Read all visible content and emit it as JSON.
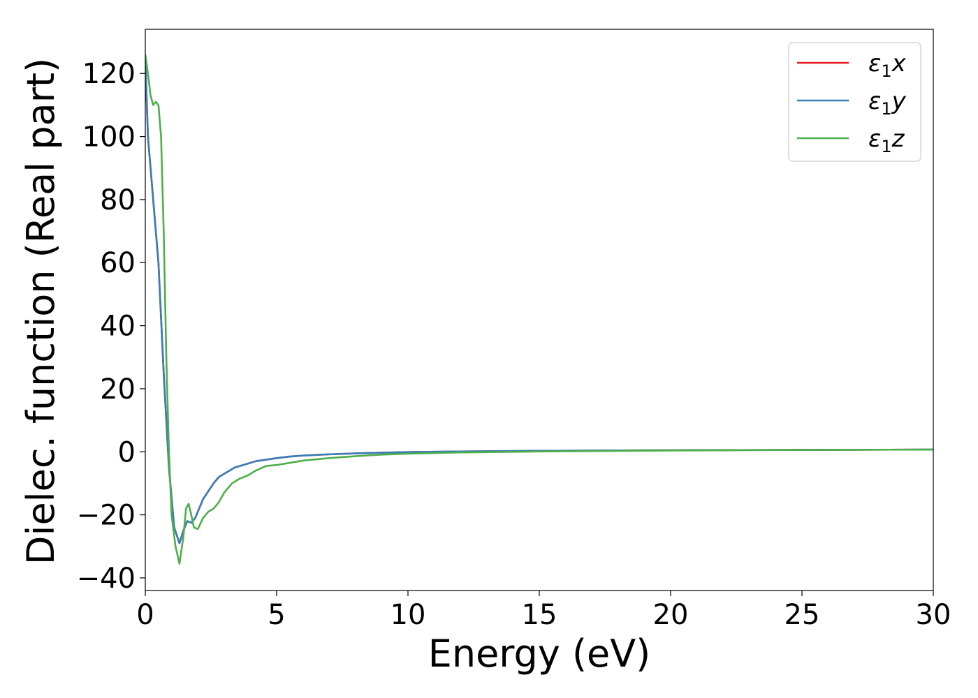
{
  "chart_data": {
    "type": "line",
    "xlabel": "Energy (eV)",
    "ylabel": "Dielec. function (Real part)",
    "xlim": [
      0,
      30
    ],
    "ylim": [
      -44,
      134
    ],
    "xticks": [
      0,
      5,
      10,
      15,
      20,
      25,
      30
    ],
    "yticks": [
      -40,
      -20,
      0,
      20,
      40,
      60,
      80,
      100,
      120
    ],
    "yticklabels": [
      "−40",
      "−20",
      "0",
      "20",
      "40",
      "60",
      "80",
      "100",
      "120"
    ],
    "grid": false,
    "legend_position": "top-right",
    "series": [
      {
        "name": "x",
        "legend_label": {
          "base": "ε",
          "sub": "1",
          "var": "x"
        },
        "color": "#e41a1c",
        "x": [
          0,
          0.1,
          0.3,
          0.5,
          0.7,
          0.9,
          1.1,
          1.3,
          1.45,
          1.6,
          1.75,
          1.9,
          2.05,
          2.2,
          2.4,
          2.6,
          2.8,
          3.0,
          3.4,
          3.8,
          4.2,
          4.6,
          5.0,
          5.5,
          6.0,
          7.0,
          8.0,
          9.0,
          10.0,
          12.0,
          15.0,
          20.0,
          25.0,
          30.0
        ],
        "y": [
          125,
          100,
          80,
          60,
          25,
          -5,
          -24,
          -29,
          -25,
          -22,
          -22.5,
          -21,
          -18,
          -15,
          -12.5,
          -10,
          -8,
          -7,
          -5,
          -4,
          -3,
          -2.5,
          -2,
          -1.5,
          -1.2,
          -0.8,
          -0.5,
          -0.3,
          -0.1,
          0.1,
          0.3,
          0.5,
          0.6,
          0.7
        ]
      },
      {
        "name": "y",
        "legend_label": {
          "base": "ε",
          "sub": "1",
          "var": "y"
        },
        "color": "#377eb8",
        "x": [
          0,
          0.1,
          0.3,
          0.5,
          0.7,
          0.9,
          1.1,
          1.3,
          1.45,
          1.6,
          1.75,
          1.9,
          2.05,
          2.2,
          2.4,
          2.6,
          2.8,
          3.0,
          3.4,
          3.8,
          4.2,
          4.6,
          5.0,
          5.5,
          6.0,
          7.0,
          8.0,
          9.0,
          10.0,
          12.0,
          15.0,
          20.0,
          25.0,
          30.0
        ],
        "y": [
          125,
          100,
          80,
          60,
          25,
          -5,
          -24,
          -29,
          -25,
          -22,
          -22.5,
          -21,
          -18,
          -15,
          -12.5,
          -10,
          -8,
          -7,
          -5,
          -4,
          -3,
          -2.5,
          -2,
          -1.5,
          -1.2,
          -0.8,
          -0.5,
          -0.3,
          -0.1,
          0.1,
          0.3,
          0.5,
          0.6,
          0.7
        ]
      },
      {
        "name": "z",
        "legend_label": {
          "base": "ε",
          "sub": "1",
          "var": "z"
        },
        "color": "#4daf4a",
        "x": [
          0,
          0.1,
          0.2,
          0.3,
          0.4,
          0.5,
          0.6,
          0.7,
          0.8,
          0.9,
          1.0,
          1.15,
          1.3,
          1.45,
          1.55,
          1.65,
          1.75,
          1.85,
          2.0,
          2.2,
          2.4,
          2.6,
          2.8,
          3.0,
          3.3,
          3.6,
          3.9,
          4.2,
          4.6,
          5.0,
          5.5,
          6.0,
          7.0,
          8.0,
          9.0,
          10.0,
          12.0,
          15.0,
          20.0,
          25.0,
          30.0
        ],
        "y": [
          126,
          120,
          113,
          110,
          111,
          110,
          100,
          70,
          30,
          0,
          -20,
          -30,
          -35.5,
          -27,
          -18,
          -16.5,
          -20,
          -24,
          -24.5,
          -21,
          -19,
          -18,
          -16,
          -13,
          -10,
          -8.5,
          -7.5,
          -6,
          -4.5,
          -4.2,
          -3.5,
          -2.8,
          -2,
          -1.4,
          -0.9,
          -0.6,
          -0.2,
          0.1,
          0.4,
          0.6,
          0.7
        ]
      }
    ]
  }
}
